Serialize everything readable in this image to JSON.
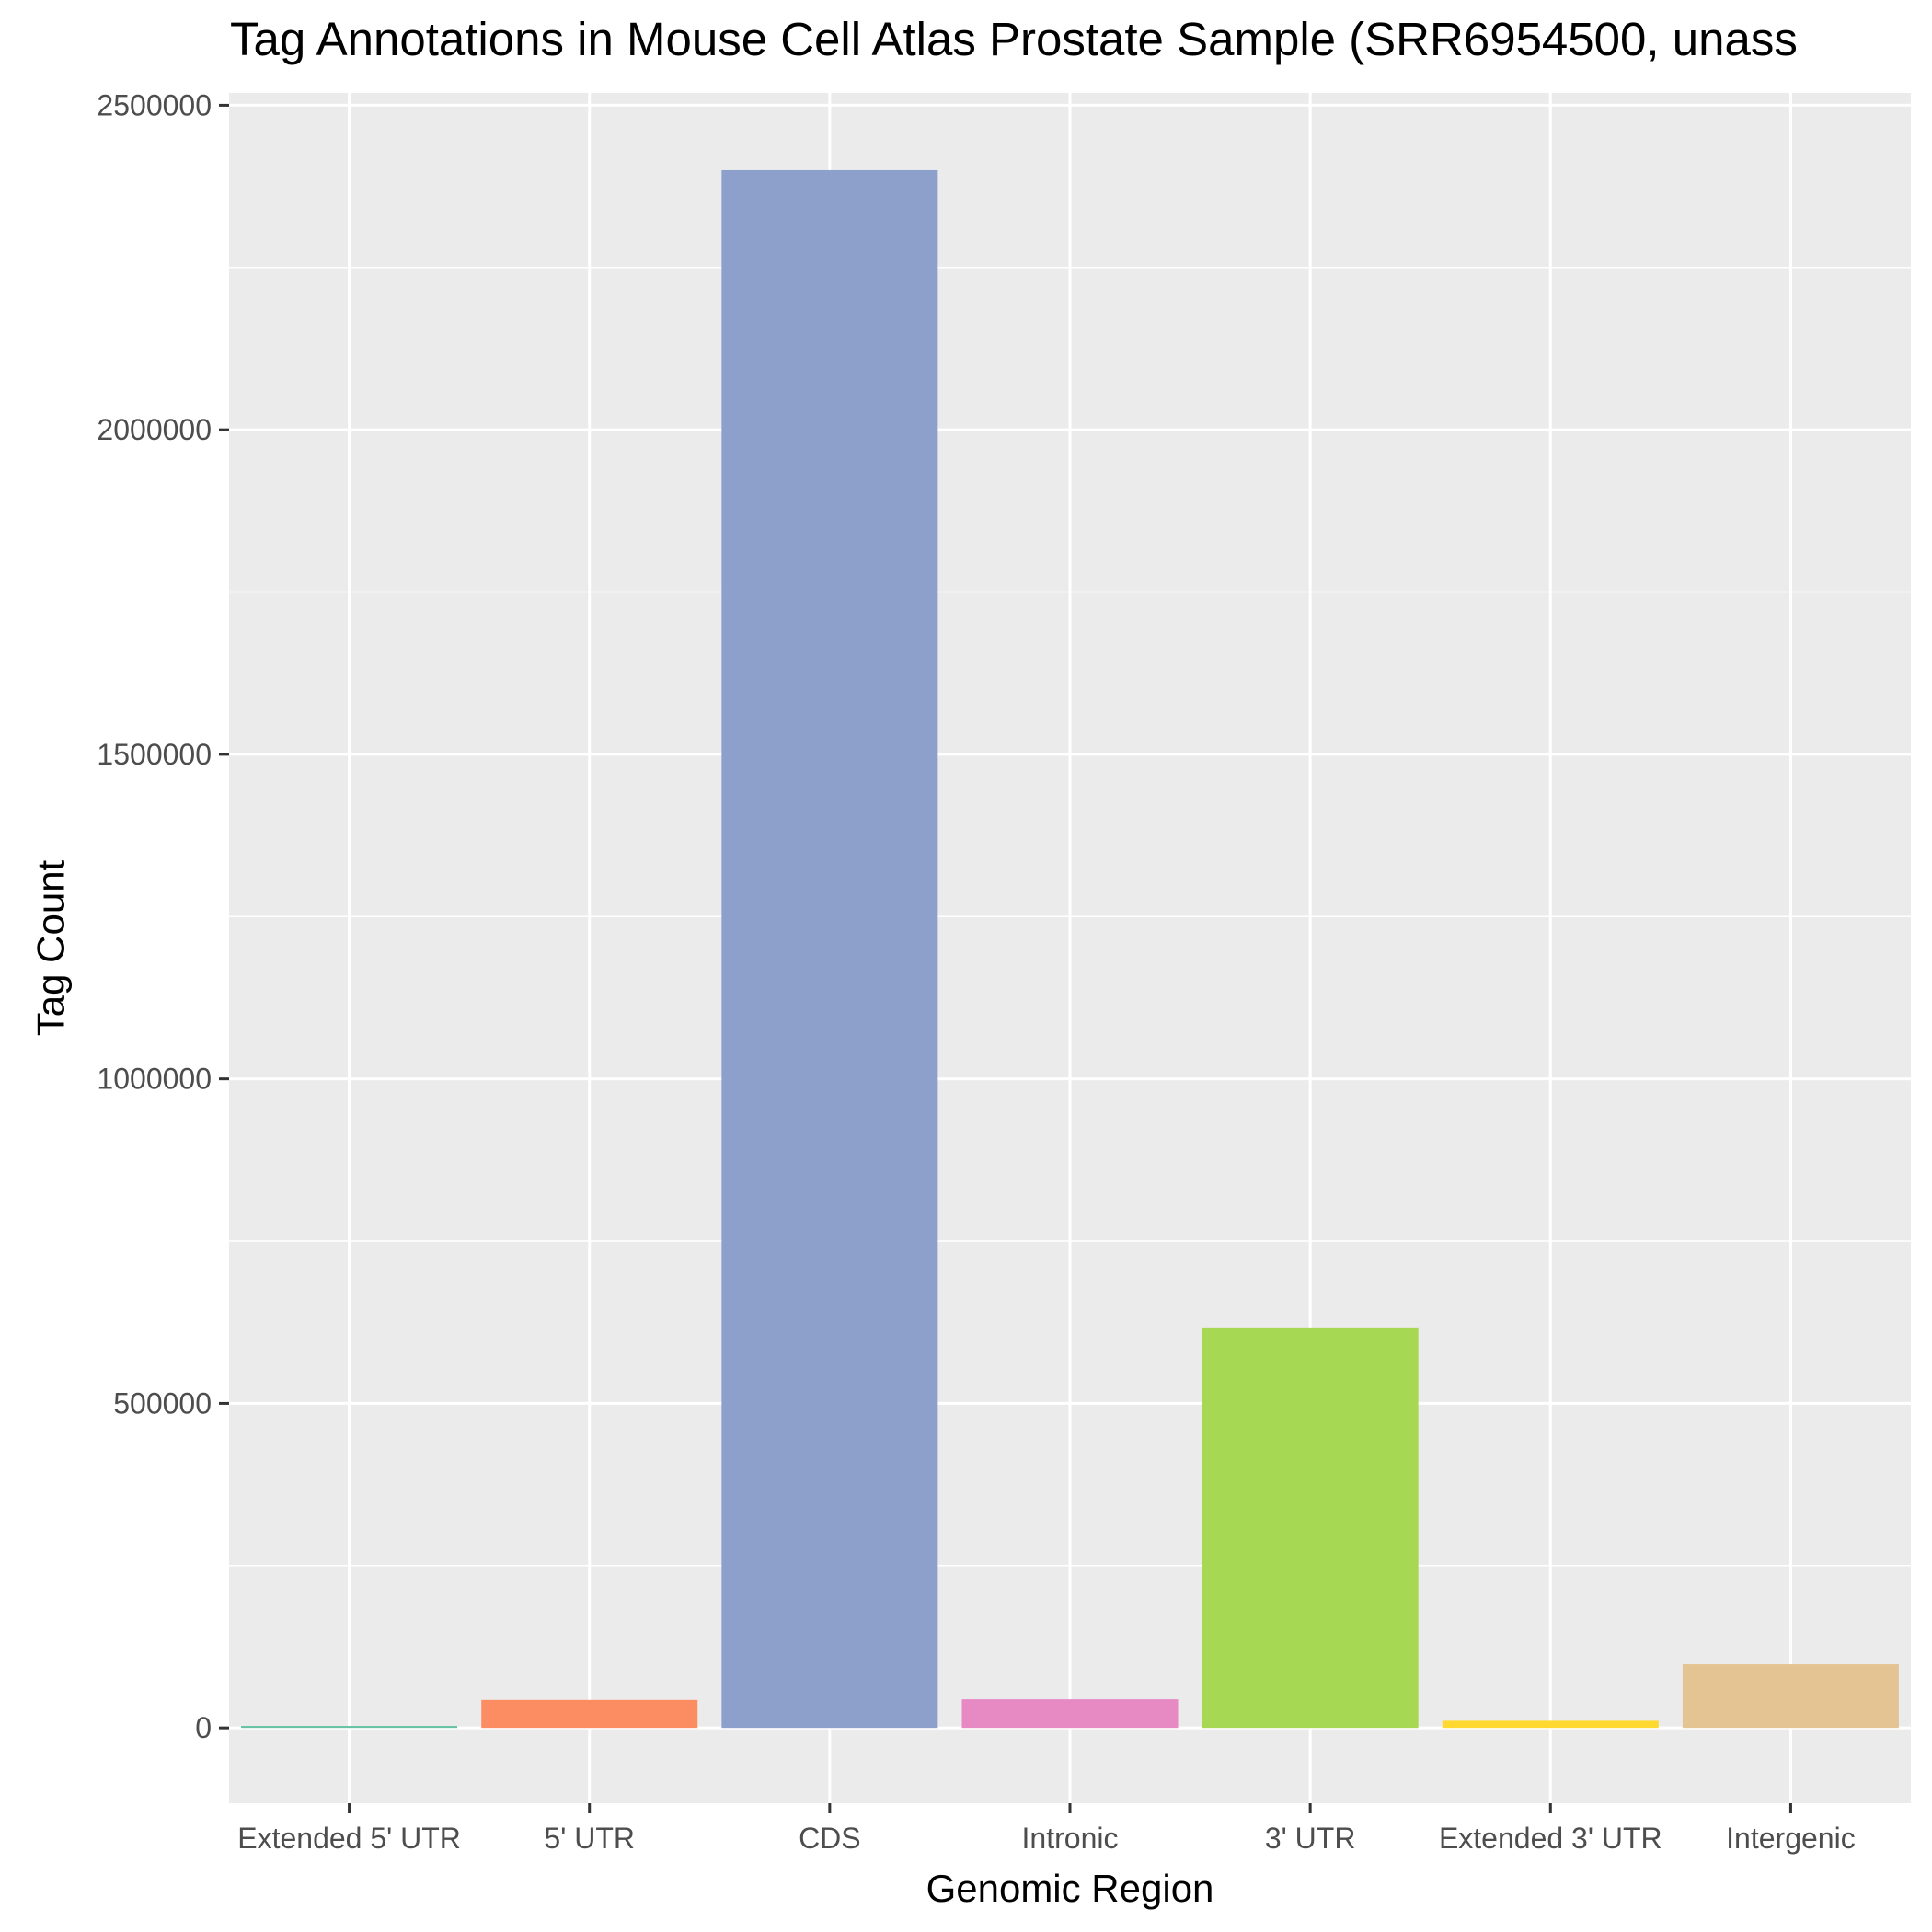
{
  "chart_data": {
    "type": "bar",
    "title": "Tag Annotations in Mouse Cell Atlas Prostate Sample (SRR6954500, unass",
    "xlabel": "Genomic Region",
    "ylabel": "Tag Count",
    "categories": [
      "Extended 5' UTR",
      "5' UTR",
      "CDS",
      "Intronic",
      "3' UTR",
      "Extended 3' UTR",
      "Intergenic"
    ],
    "values": [
      3000,
      43000,
      2400000,
      44000,
      617000,
      11000,
      98000
    ],
    "colors": [
      "#66c2a5",
      "#fc8d62",
      "#8da0cb",
      "#e78ac3",
      "#a6d854",
      "#ffd92f",
      "#e5c494"
    ],
    "ylim": [
      -116000,
      2519000
    ],
    "yticks": [
      0,
      500000,
      1000000,
      1500000,
      2000000,
      2500000
    ],
    "yticklabels": [
      "0",
      "500000",
      "1000000",
      "1500000",
      "2000000",
      "2500000"
    ],
    "grid": true,
    "legend": "none",
    "panel_background": "#ebebeb",
    "grid_color": "#ffffff"
  }
}
